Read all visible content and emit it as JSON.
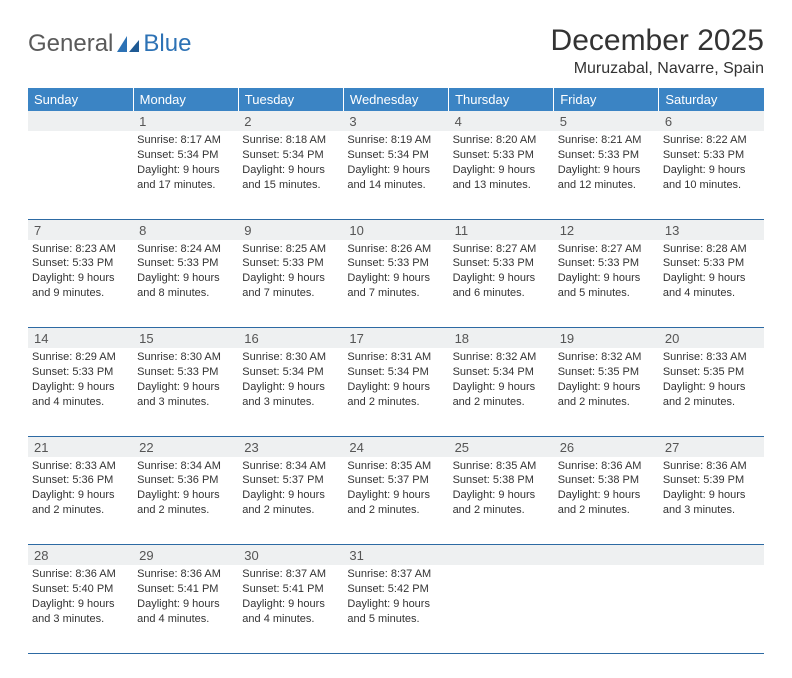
{
  "brand": {
    "name1": "General",
    "name2": "Blue"
  },
  "title": "December 2025",
  "location": "Muruzabal, Navarre, Spain",
  "colors": {
    "header_bg": "#3b84c4",
    "header_text": "#ffffff",
    "daynum_bg": "#eef0f1",
    "border": "#2d6aa3",
    "brand_blue": "#2d72b5",
    "text": "#333333",
    "page_bg": "#ffffff"
  },
  "typography": {
    "title_fontsize": 30,
    "location_fontsize": 16,
    "dayname_fontsize": 13,
    "daynum_fontsize": 13,
    "cell_fontsize": 11
  },
  "day_names": [
    "Sunday",
    "Monday",
    "Tuesday",
    "Wednesday",
    "Thursday",
    "Friday",
    "Saturday"
  ],
  "weeks": [
    {
      "nums": [
        "",
        "1",
        "2",
        "3",
        "4",
        "5",
        "6"
      ],
      "cells": [
        "",
        "Sunrise: 8:17 AM\nSunset: 5:34 PM\nDaylight: 9 hours and 17 minutes.",
        "Sunrise: 8:18 AM\nSunset: 5:34 PM\nDaylight: 9 hours and 15 minutes.",
        "Sunrise: 8:19 AM\nSunset: 5:34 PM\nDaylight: 9 hours and 14 minutes.",
        "Sunrise: 8:20 AM\nSunset: 5:33 PM\nDaylight: 9 hours and 13 minutes.",
        "Sunrise: 8:21 AM\nSunset: 5:33 PM\nDaylight: 9 hours and 12 minutes.",
        "Sunrise: 8:22 AM\nSunset: 5:33 PM\nDaylight: 9 hours and 10 minutes."
      ]
    },
    {
      "nums": [
        "7",
        "8",
        "9",
        "10",
        "11",
        "12",
        "13"
      ],
      "cells": [
        "Sunrise: 8:23 AM\nSunset: 5:33 PM\nDaylight: 9 hours and 9 minutes.",
        "Sunrise: 8:24 AM\nSunset: 5:33 PM\nDaylight: 9 hours and 8 minutes.",
        "Sunrise: 8:25 AM\nSunset: 5:33 PM\nDaylight: 9 hours and 7 minutes.",
        "Sunrise: 8:26 AM\nSunset: 5:33 PM\nDaylight: 9 hours and 7 minutes.",
        "Sunrise: 8:27 AM\nSunset: 5:33 PM\nDaylight: 9 hours and 6 minutes.",
        "Sunrise: 8:27 AM\nSunset: 5:33 PM\nDaylight: 9 hours and 5 minutes.",
        "Sunrise: 8:28 AM\nSunset: 5:33 PM\nDaylight: 9 hours and 4 minutes."
      ]
    },
    {
      "nums": [
        "14",
        "15",
        "16",
        "17",
        "18",
        "19",
        "20"
      ],
      "cells": [
        "Sunrise: 8:29 AM\nSunset: 5:33 PM\nDaylight: 9 hours and 4 minutes.",
        "Sunrise: 8:30 AM\nSunset: 5:33 PM\nDaylight: 9 hours and 3 minutes.",
        "Sunrise: 8:30 AM\nSunset: 5:34 PM\nDaylight: 9 hours and 3 minutes.",
        "Sunrise: 8:31 AM\nSunset: 5:34 PM\nDaylight: 9 hours and 2 minutes.",
        "Sunrise: 8:32 AM\nSunset: 5:34 PM\nDaylight: 9 hours and 2 minutes.",
        "Sunrise: 8:32 AM\nSunset: 5:35 PM\nDaylight: 9 hours and 2 minutes.",
        "Sunrise: 8:33 AM\nSunset: 5:35 PM\nDaylight: 9 hours and 2 minutes."
      ]
    },
    {
      "nums": [
        "21",
        "22",
        "23",
        "24",
        "25",
        "26",
        "27"
      ],
      "cells": [
        "Sunrise: 8:33 AM\nSunset: 5:36 PM\nDaylight: 9 hours and 2 minutes.",
        "Sunrise: 8:34 AM\nSunset: 5:36 PM\nDaylight: 9 hours and 2 minutes.",
        "Sunrise: 8:34 AM\nSunset: 5:37 PM\nDaylight: 9 hours and 2 minutes.",
        "Sunrise: 8:35 AM\nSunset: 5:37 PM\nDaylight: 9 hours and 2 minutes.",
        "Sunrise: 8:35 AM\nSunset: 5:38 PM\nDaylight: 9 hours and 2 minutes.",
        "Sunrise: 8:36 AM\nSunset: 5:38 PM\nDaylight: 9 hours and 2 minutes.",
        "Sunrise: 8:36 AM\nSunset: 5:39 PM\nDaylight: 9 hours and 3 minutes."
      ]
    },
    {
      "nums": [
        "28",
        "29",
        "30",
        "31",
        "",
        "",
        ""
      ],
      "cells": [
        "Sunrise: 8:36 AM\nSunset: 5:40 PM\nDaylight: 9 hours and 3 minutes.",
        "Sunrise: 8:36 AM\nSunset: 5:41 PM\nDaylight: 9 hours and 4 minutes.",
        "Sunrise: 8:37 AM\nSunset: 5:41 PM\nDaylight: 9 hours and 4 minutes.",
        "Sunrise: 8:37 AM\nSunset: 5:42 PM\nDaylight: 9 hours and 5 minutes.",
        "",
        "",
        ""
      ]
    }
  ]
}
